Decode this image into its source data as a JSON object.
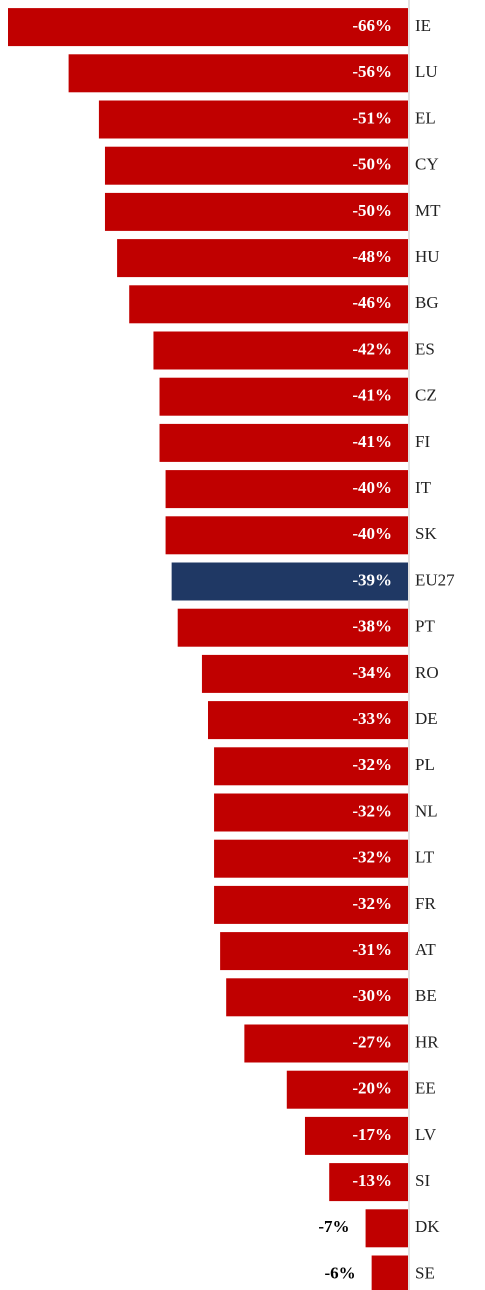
{
  "chart_data": {
    "type": "bar",
    "orientation": "horizontal",
    "categories": [
      "IE",
      "LU",
      "EL",
      "CY",
      "MT",
      "HU",
      "BG",
      "ES",
      "CZ",
      "FI",
      "IT",
      "SK",
      "EU27",
      "PT",
      "RO",
      "DE",
      "PL",
      "NL",
      "LT",
      "FR",
      "AT",
      "BE",
      "HR",
      "EE",
      "LV",
      "SI",
      "DK",
      "SE"
    ],
    "values": [
      -66,
      -56,
      -51,
      -50,
      -50,
      -48,
      -46,
      -42,
      -41,
      -41,
      -40,
      -40,
      -39,
      -38,
      -34,
      -33,
      -32,
      -32,
      -32,
      -32,
      -31,
      -30,
      -27,
      -20,
      -17,
      -13,
      -7,
      -6
    ],
    "value_labels": [
      "-66%",
      "-56%",
      "-51%",
      "-50%",
      "-50%",
      "-48%",
      "-46%",
      "-42%",
      "-41%",
      "-41%",
      "-40%",
      "-40%",
      "-39%",
      "-38%",
      "-34%",
      "-33%",
      "-32%",
      "-32%",
      "-32%",
      "-32%",
      "-31%",
      "-30%",
      "-27%",
      "-20%",
      "-17%",
      "-13%",
      "-7%",
      "-6%"
    ],
    "colors": [
      "#c00000",
      "#c00000",
      "#c00000",
      "#c00000",
      "#c00000",
      "#c00000",
      "#c00000",
      "#c00000",
      "#c00000",
      "#c00000",
      "#c00000",
      "#c00000",
      "#1f3864",
      "#c00000",
      "#c00000",
      "#c00000",
      "#c00000",
      "#c00000",
      "#c00000",
      "#c00000",
      "#c00000",
      "#c00000",
      "#c00000",
      "#c00000",
      "#c00000",
      "#c00000",
      "#c00000",
      "#c00000"
    ]
  }
}
